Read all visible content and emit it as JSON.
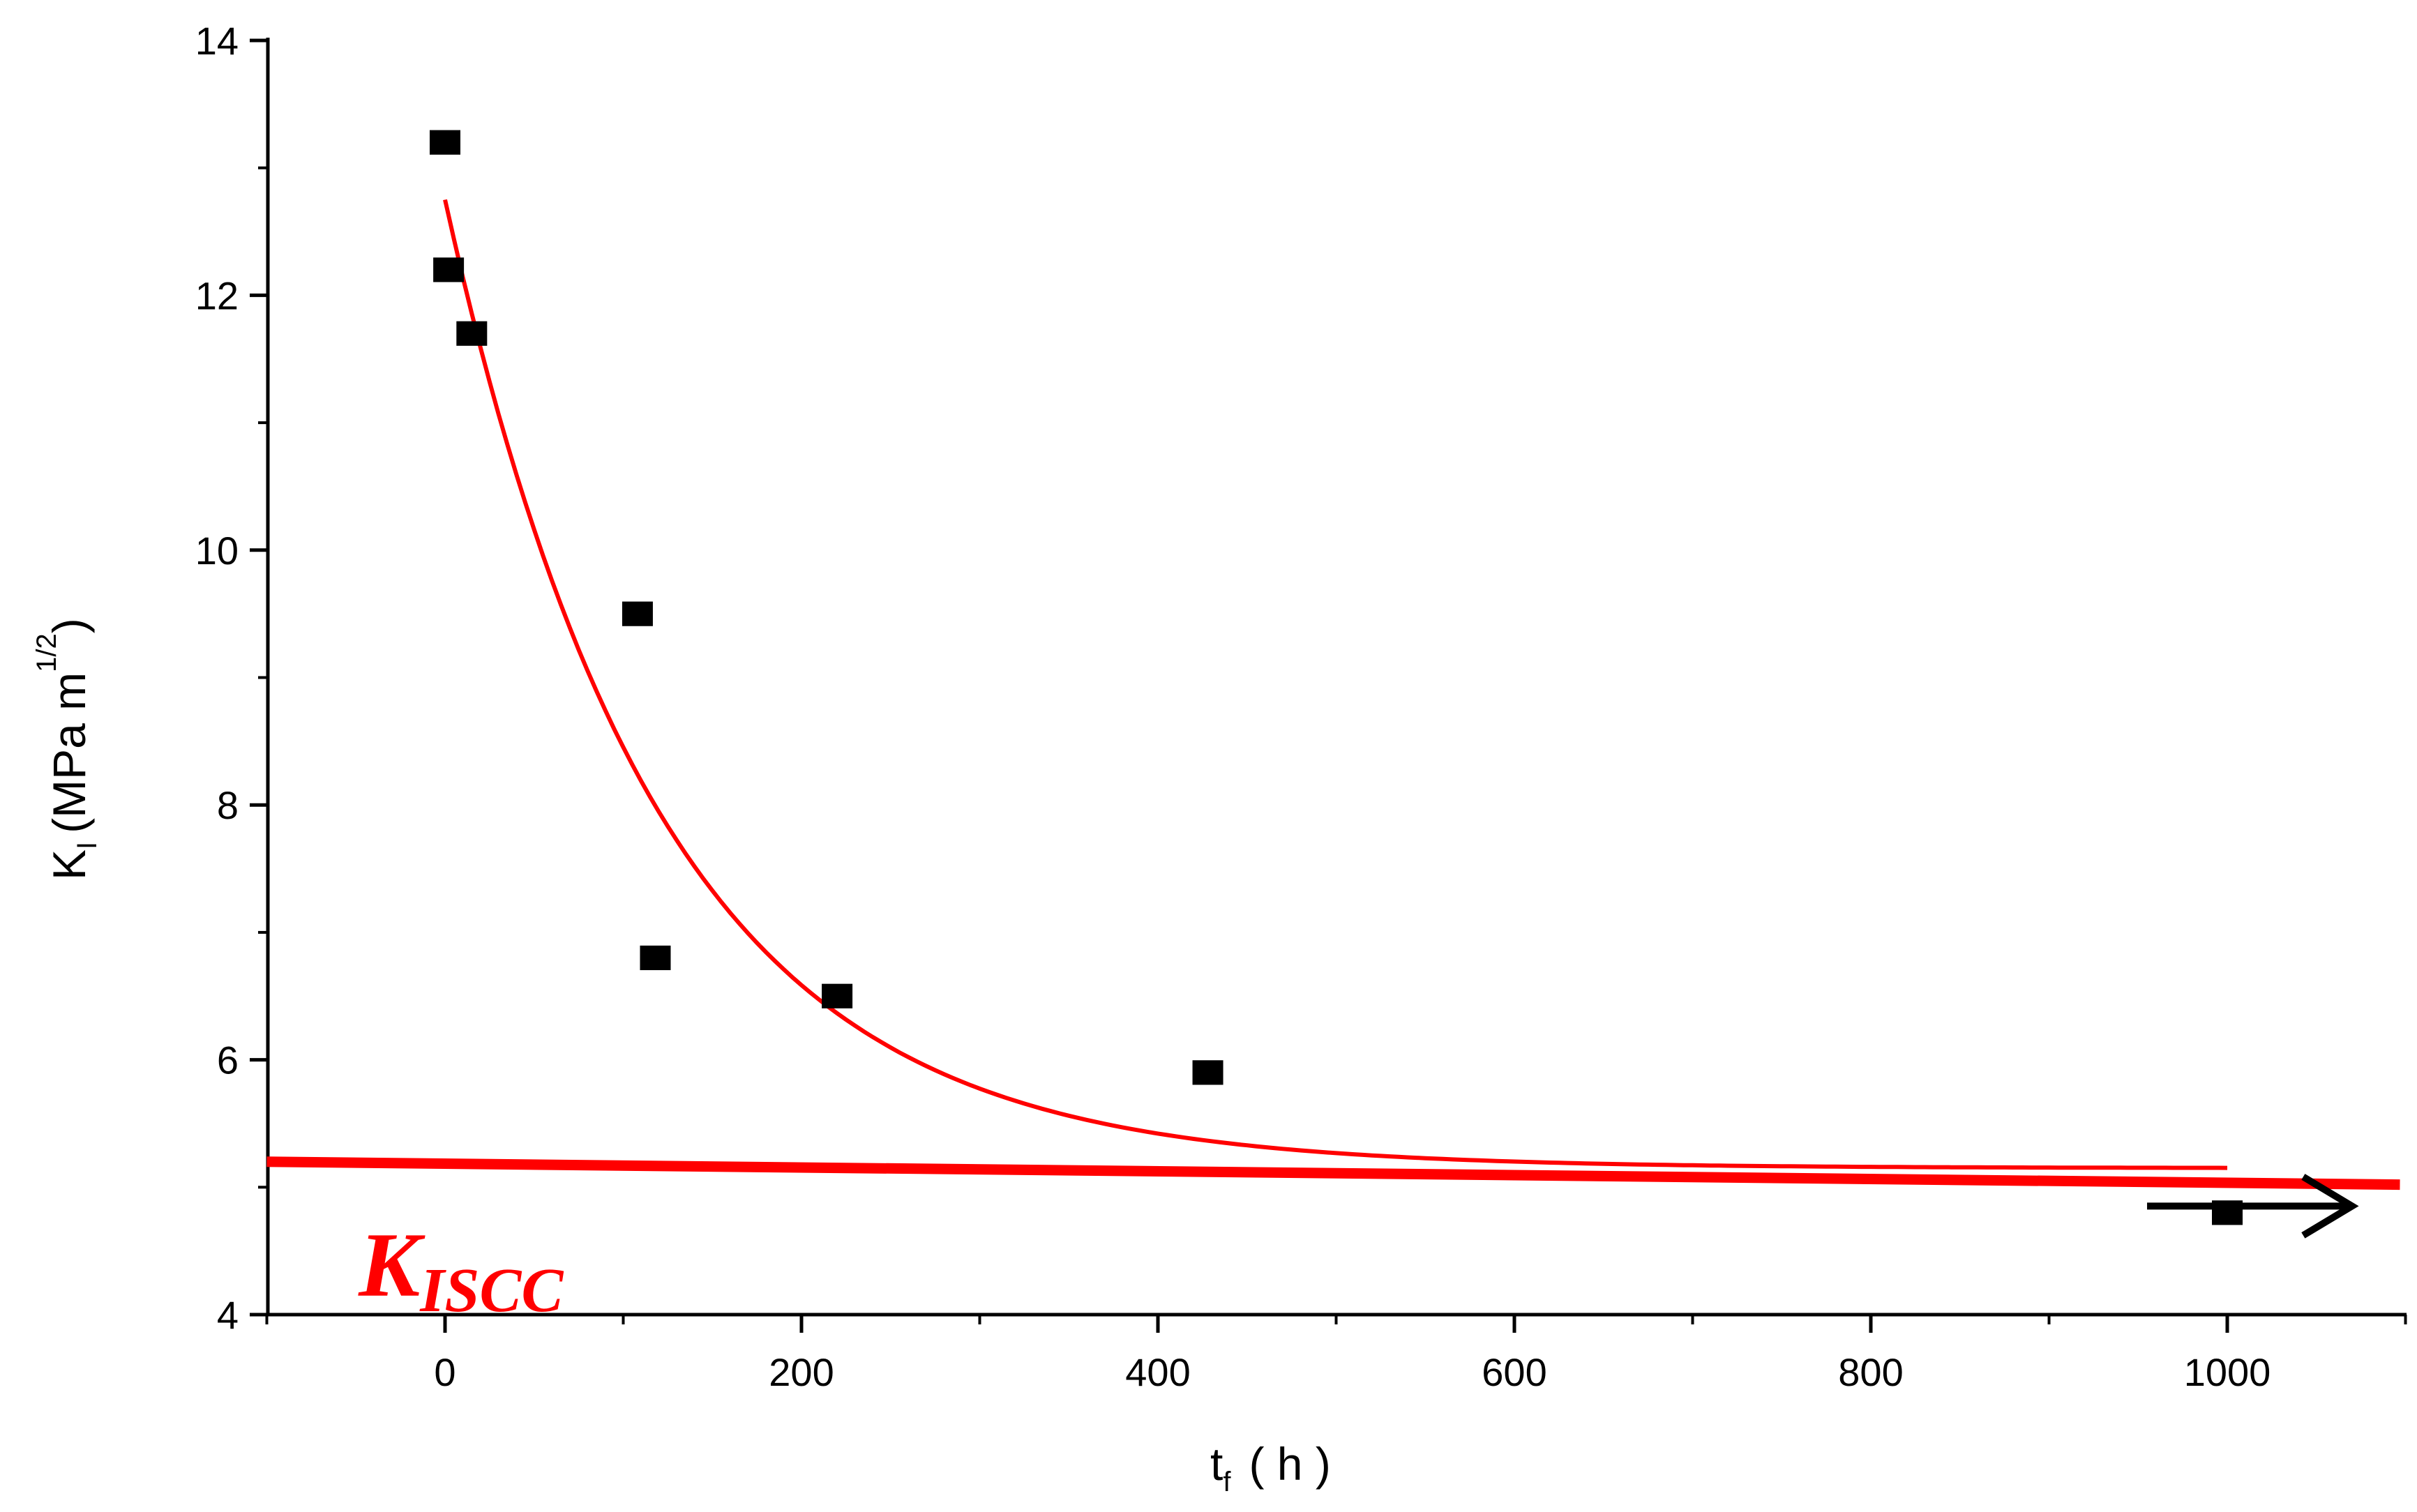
{
  "chart_data": {
    "type": "scatter",
    "xlabel": {
      "main": "t",
      "sub": "f",
      "unit": "( h )"
    },
    "ylabel": {
      "main": "K",
      "sub": "I",
      "unit_pre": "(MPa m",
      "unit_sup": "1/2",
      "unit_post": ")"
    },
    "xlim": [
      -100,
      1100
    ],
    "ylim": [
      4,
      14
    ],
    "x_ticks": [
      0,
      200,
      400,
      600,
      800,
      1000
    ],
    "y_ticks": [
      4,
      6,
      8,
      10,
      12,
      14
    ],
    "grid": false,
    "series": [
      {
        "kind": "markers",
        "marker": "square",
        "color": "#000000",
        "points": [
          {
            "x": 0,
            "y": 13.2
          },
          {
            "x": 2,
            "y": 12.2
          },
          {
            "x": 15,
            "y": 11.7
          },
          {
            "x": 108,
            "y": 9.5
          },
          {
            "x": 118,
            "y": 6.8
          },
          {
            "x": 220,
            "y": 6.5
          },
          {
            "x": 428,
            "y": 5.9
          },
          {
            "x": 1000,
            "y": 4.8
          }
        ]
      },
      {
        "kind": "fit-curve",
        "color": "#ff0000",
        "model": "exponential decay",
        "y0": 5.15,
        "amplitude": 7.6,
        "tau": 120,
        "x_range": [
          0,
          1000
        ]
      },
      {
        "kind": "threshold-line",
        "color": "#ff0000",
        "y_start": 5.2,
        "y_end": 5.02,
        "x_range": [
          -100,
          1100
        ]
      }
    ],
    "annotations": [
      {
        "type": "text",
        "text": "K",
        "sub": "ISCC",
        "color": "#ff0000",
        "anchor": {
          "x": -50,
          "y": 4.45
        }
      },
      {
        "type": "arrow",
        "color": "#000000",
        "from": {
          "x": 955,
          "y": 4.83
        },
        "to": {
          "x": 1070,
          "y": 4.83
        }
      }
    ]
  }
}
